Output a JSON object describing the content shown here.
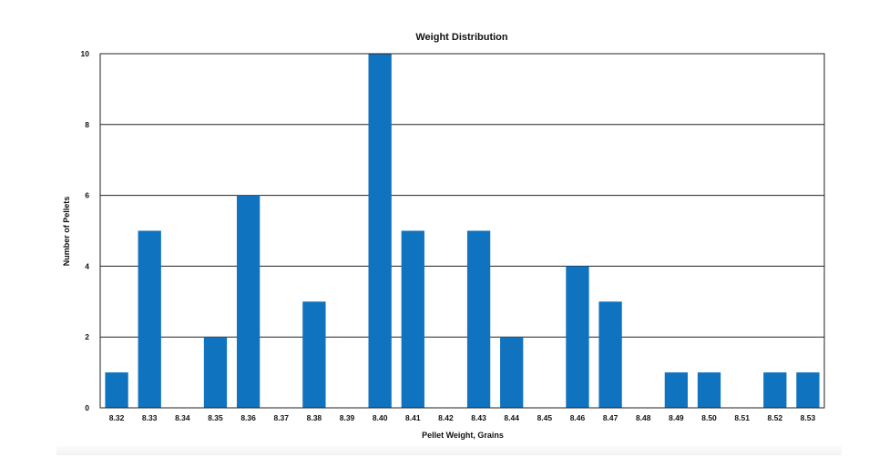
{
  "chart_data": {
    "type": "bar",
    "title": "Weight Distribution",
    "xlabel": "Pellet Weight, Grains",
    "ylabel": "Number of Pellets",
    "categories": [
      "8.32",
      "8.33",
      "8.34",
      "8.35",
      "8.36",
      "8.37",
      "8.38",
      "8.39",
      "8.40",
      "8.41",
      "8.42",
      "8.43",
      "8.44",
      "8.45",
      "8.46",
      "8.47",
      "8.48",
      "8.49",
      "8.50",
      "8.51",
      "8.52",
      "8.53"
    ],
    "values": [
      1,
      5,
      0,
      2,
      6,
      0,
      3,
      0,
      10,
      5,
      0,
      5,
      2,
      0,
      4,
      3,
      0,
      1,
      1,
      0,
      1,
      1
    ],
    "ylim": [
      0,
      10
    ],
    "yticks": [
      "0",
      "2",
      "4",
      "6",
      "8",
      "10"
    ],
    "grid": true,
    "colors": {
      "bar": "#0f73c0",
      "grid": "#222222",
      "text": "#111111"
    }
  }
}
